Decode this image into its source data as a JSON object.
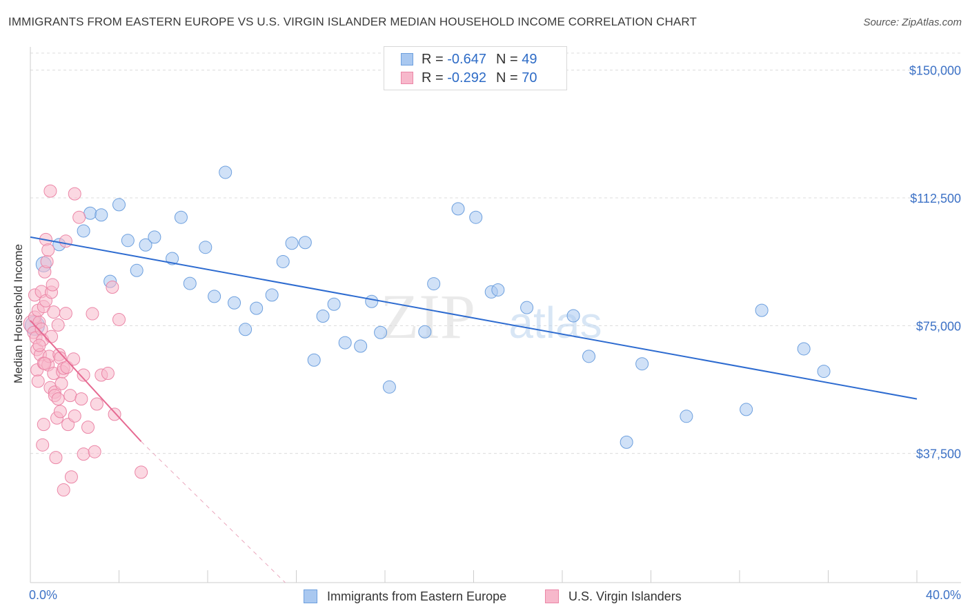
{
  "chart_data": {
    "type": "scatter",
    "title": "IMMIGRANTS FROM EASTERN EUROPE VS U.S. VIRGIN ISLANDER MEDIAN HOUSEHOLD INCOME CORRELATION CHART",
    "source": "Source: ZipAtlas.com",
    "ylabel": "Median Household Income",
    "xlabel": "",
    "xlim": [
      0,
      40
    ],
    "ylim": [
      0,
      155000
    ],
    "x_tick_labels": {
      "left": "0.0%",
      "right": "40.0%"
    },
    "y_ticks": [
      {
        "value": 150000,
        "label": "$150,000"
      },
      {
        "value": 112500,
        "label": "$112,500"
      },
      {
        "value": 75000,
        "label": "$75,000"
      },
      {
        "value": 37500,
        "label": "$37,500"
      }
    ],
    "watermark": {
      "zip": "ZIP",
      "atlas": "atlas"
    },
    "legend_stats": [
      {
        "r_label": "R =",
        "r": "-0.647",
        "n_label": "N =",
        "n": "49",
        "color": "#a9c8f0",
        "border": "#6c9fde"
      },
      {
        "r_label": "R =",
        "r": "-0.292",
        "n_label": "N =",
        "n": "70",
        "color": "#f7b8cb",
        "border": "#eb85a6"
      }
    ],
    "series": [
      {
        "name": "Immigrants from Eastern Europe",
        "color": "#a9c8f0",
        "stroke": "#6c9fde",
        "trend": {
          "x0": 0.0,
          "y0": 101000,
          "x1": 40.0,
          "y1": 53500,
          "color": "#2d6bd0"
        },
        "points": [
          [
            0.2,
            75000,
            14
          ],
          [
            0.6,
            93000,
            11
          ],
          [
            1.3,
            98800,
            9
          ],
          [
            2.4,
            102800,
            9
          ],
          [
            2.7,
            108000,
            9
          ],
          [
            3.2,
            107500,
            9
          ],
          [
            3.6,
            88000,
            9
          ],
          [
            4.0,
            110500,
            9
          ],
          [
            4.4,
            100000,
            9
          ],
          [
            4.8,
            91200,
            9
          ],
          [
            5.2,
            98700,
            9
          ],
          [
            5.6,
            101000,
            9
          ],
          [
            6.4,
            94700,
            9
          ],
          [
            6.8,
            106800,
            9
          ],
          [
            7.2,
            87400,
            9
          ],
          [
            7.9,
            98000,
            9
          ],
          [
            8.3,
            83600,
            9
          ],
          [
            8.8,
            120000,
            9
          ],
          [
            9.2,
            81700,
            9
          ],
          [
            9.7,
            73900,
            9
          ],
          [
            10.2,
            80100,
            9
          ],
          [
            10.9,
            84000,
            9
          ],
          [
            11.4,
            93800,
            9
          ],
          [
            11.8,
            99200,
            9
          ],
          [
            12.4,
            99400,
            9
          ],
          [
            12.8,
            64900,
            9
          ],
          [
            13.2,
            77800,
            9
          ],
          [
            13.7,
            81300,
            9
          ],
          [
            14.2,
            70000,
            9
          ],
          [
            14.9,
            69000,
            9
          ],
          [
            15.4,
            82100,
            9
          ],
          [
            15.8,
            73000,
            9
          ],
          [
            16.2,
            57000,
            9
          ],
          [
            17.8,
            73200,
            9
          ],
          [
            18.2,
            87300,
            9
          ],
          [
            19.3,
            109300,
            9
          ],
          [
            20.1,
            106800,
            9
          ],
          [
            20.8,
            84900,
            9
          ],
          [
            21.1,
            85500,
            9
          ],
          [
            22.4,
            80300,
            9
          ],
          [
            24.5,
            77900,
            9
          ],
          [
            25.2,
            66000,
            9
          ],
          [
            26.9,
            40800,
            9
          ],
          [
            27.6,
            63800,
            9
          ],
          [
            29.6,
            48400,
            9
          ],
          [
            32.3,
            50400,
            9
          ],
          [
            33.0,
            79500,
            9
          ],
          [
            34.9,
            68200,
            9
          ],
          [
            35.8,
            61600,
            9
          ]
        ]
      },
      {
        "name": "U.S. Virgin Islanders",
        "color": "#f7b8cb",
        "stroke": "#eb85a6",
        "trend": {
          "x0": 0.0,
          "y0": 76500,
          "x1": 5.0,
          "y1": 41000,
          "color": "#e66a92",
          "dash_x1": 11.5,
          "dash_y1": -5000
        },
        "points": [
          [
            0.1,
            75500,
            13
          ],
          [
            0.15,
            73000,
            9
          ],
          [
            0.2,
            77500,
            9
          ],
          [
            0.25,
            71500,
            9
          ],
          [
            0.3,
            68000,
            9
          ],
          [
            0.2,
            84000,
            9
          ],
          [
            0.35,
            79500,
            9
          ],
          [
            0.4,
            76000,
            9
          ],
          [
            0.3,
            62000,
            9
          ],
          [
            0.45,
            66500,
            9
          ],
          [
            0.5,
            85000,
            9
          ],
          [
            0.5,
            74000,
            9
          ],
          [
            0.55,
            70800,
            9
          ],
          [
            0.6,
            64000,
            9
          ],
          [
            0.6,
            46000,
            9
          ],
          [
            0.55,
            40000,
            9
          ],
          [
            0.6,
            80600,
            9
          ],
          [
            0.65,
            90800,
            9
          ],
          [
            0.7,
            82300,
            9
          ],
          [
            0.7,
            100300,
            9
          ],
          [
            0.75,
            93800,
            9
          ],
          [
            0.8,
            97200,
            9
          ],
          [
            0.8,
            63500,
            9
          ],
          [
            0.85,
            66000,
            9
          ],
          [
            0.9,
            56800,
            9
          ],
          [
            0.9,
            114500,
            9
          ],
          [
            0.95,
            84800,
            9
          ],
          [
            1.0,
            87000,
            9
          ],
          [
            1.05,
            79000,
            9
          ],
          [
            1.05,
            61000,
            9
          ],
          [
            1.1,
            55500,
            9
          ],
          [
            1.1,
            54500,
            9
          ],
          [
            1.15,
            36300,
            9
          ],
          [
            1.2,
            47900,
            9
          ],
          [
            1.25,
            53500,
            9
          ],
          [
            1.3,
            66500,
            9
          ],
          [
            1.35,
            65500,
            9
          ],
          [
            1.35,
            49800,
            9
          ],
          [
            1.4,
            58000,
            9
          ],
          [
            1.45,
            61500,
            9
          ],
          [
            1.5,
            62500,
            9
          ],
          [
            1.6,
            78600,
            9
          ],
          [
            1.6,
            99800,
            9
          ],
          [
            1.65,
            62800,
            9
          ],
          [
            1.7,
            46000,
            9
          ],
          [
            1.8,
            54500,
            9
          ],
          [
            1.5,
            26800,
            9
          ],
          [
            2.0,
            48500,
            9
          ],
          [
            2.0,
            113700,
            9
          ],
          [
            2.3,
            53500,
            9
          ],
          [
            2.2,
            106800,
            9
          ],
          [
            1.85,
            30600,
            9
          ],
          [
            1.95,
            65200,
            9
          ],
          [
            2.4,
            60500,
            9
          ],
          [
            2.8,
            78500,
            9
          ],
          [
            3.2,
            60500,
            9
          ],
          [
            2.4,
            37300,
            9
          ],
          [
            3.7,
            86300,
            9
          ],
          [
            3.0,
            52000,
            9
          ],
          [
            3.8,
            49000,
            9
          ],
          [
            3.5,
            61000,
            9
          ],
          [
            4.0,
            76800,
            9
          ],
          [
            0.95,
            71800,
            9
          ],
          [
            1.25,
            75200,
            9
          ],
          [
            0.35,
            58700,
            9
          ],
          [
            0.4,
            69200,
            9
          ],
          [
            0.65,
            63900,
            9
          ],
          [
            2.6,
            45200,
            9
          ],
          [
            2.9,
            38000,
            9
          ],
          [
            5.0,
            32000,
            9
          ]
        ]
      }
    ]
  }
}
